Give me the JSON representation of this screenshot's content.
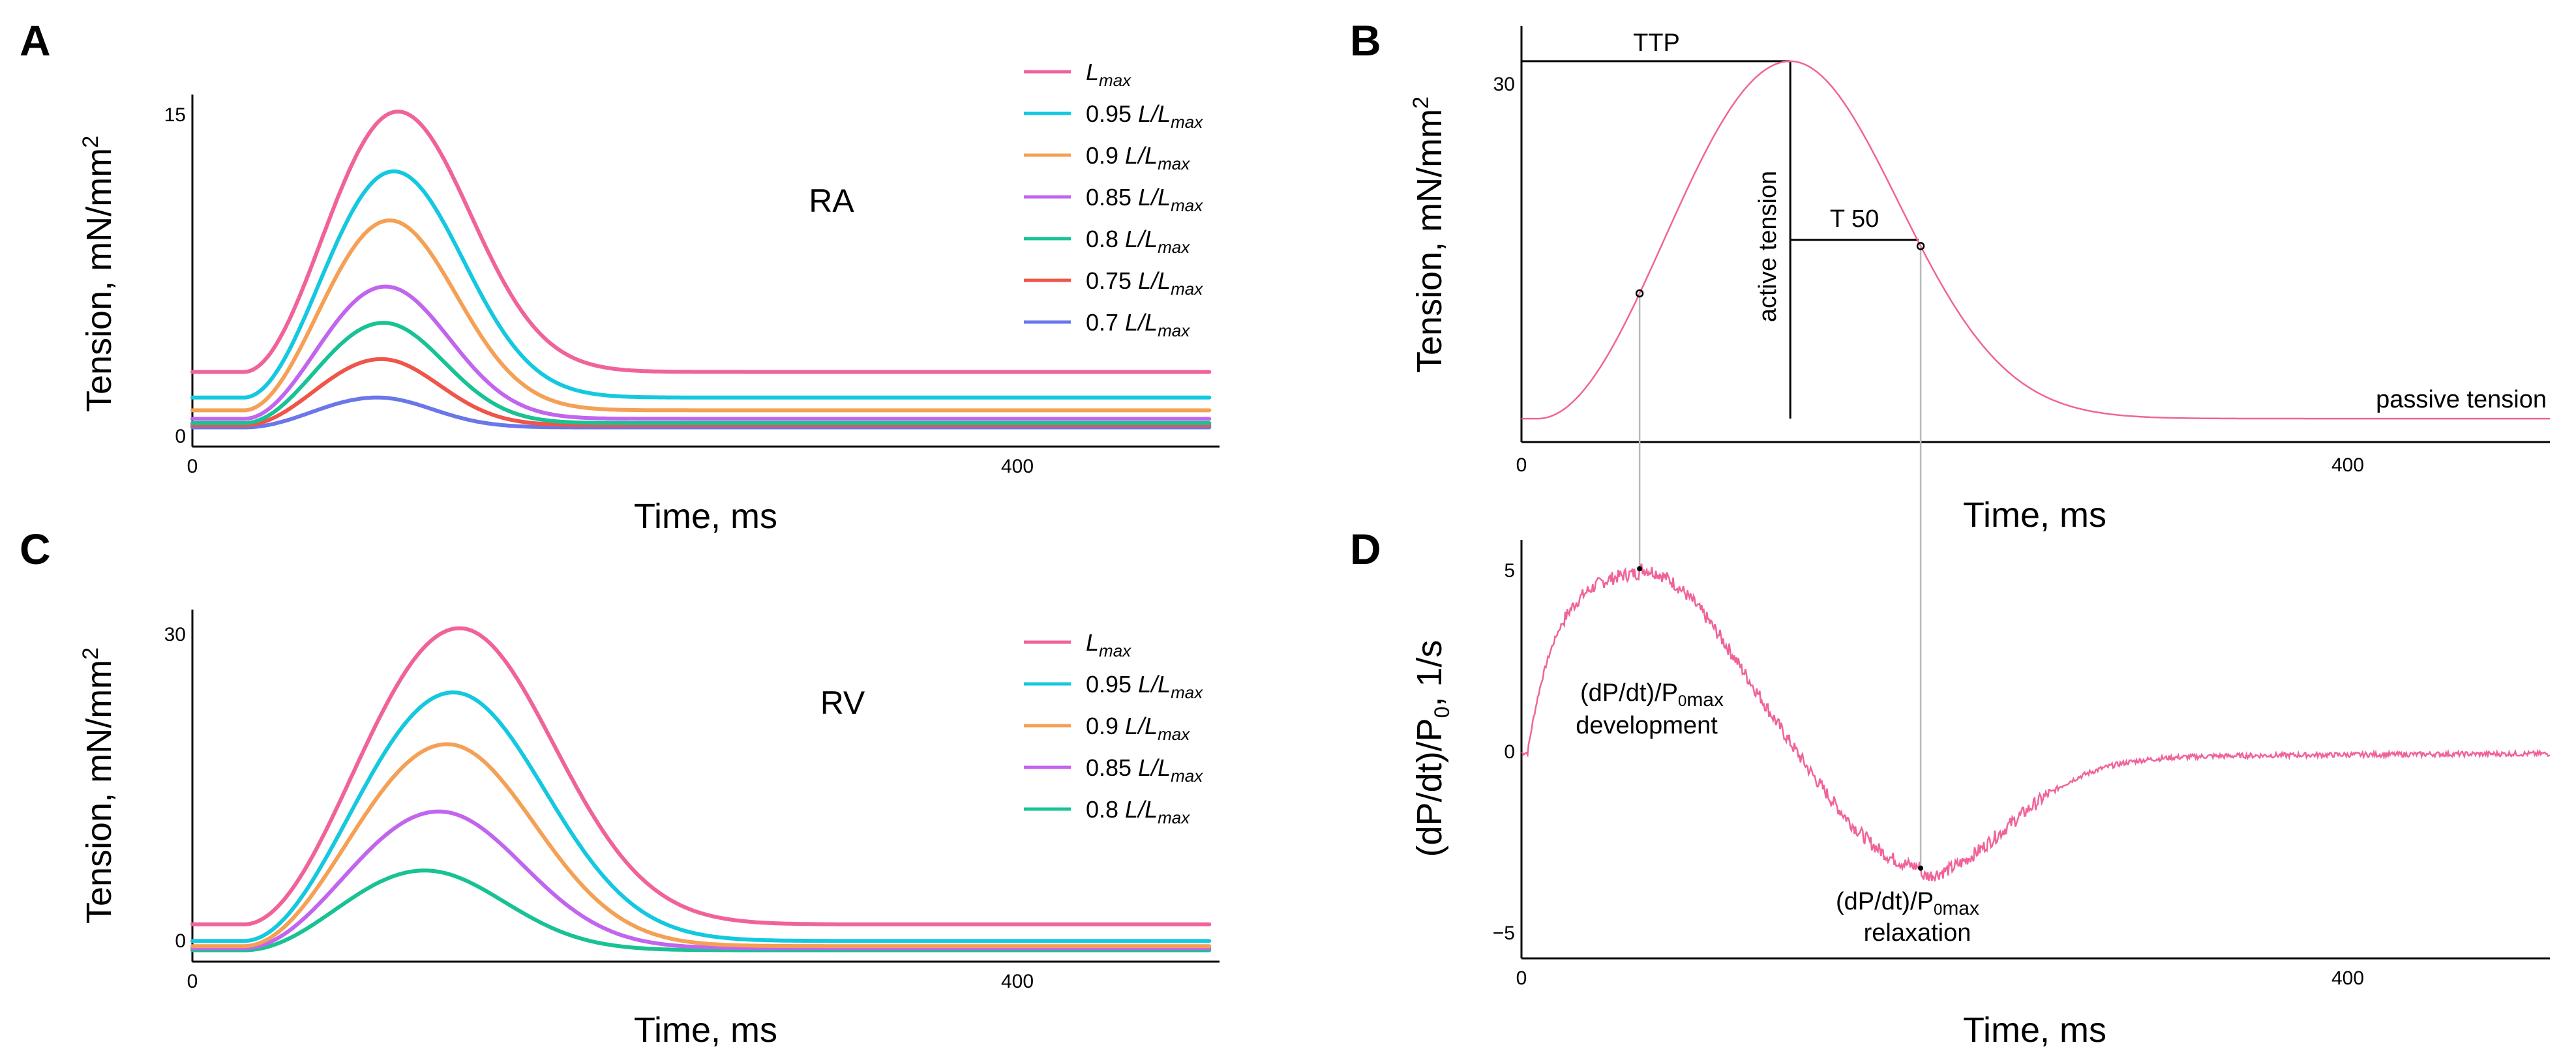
{
  "colors": {
    "Lmax": "#f0639a",
    "0.95": "#14c8e0",
    "0.9": "#f4a055",
    "0.85": "#c265ee",
    "0.8": "#18c294",
    "0.75": "#ef5548",
    "0.7": "#6a76ea",
    "guide": "#b8b8b8"
  },
  "chart_data": [
    {
      "panel": "A",
      "type": "line",
      "title": "RA",
      "xlabel": "Time, ms",
      "ylabel": "Tension, mN/mm",
      "ylabel_sup": "2",
      "xlim": [
        0,
        500
      ],
      "ylim": [
        -0.5,
        16
      ],
      "xticks": [
        "0",
        "400"
      ],
      "yticks": [
        "0",
        "15"
      ],
      "legend": "top-right",
      "series": [
        {
          "key": "Lmax",
          "name": "L",
          "sub": "max",
          "prefix": "",
          "baseline": 3.0,
          "peak": 15.2,
          "t_peak": 100,
          "t_rise": 62,
          "t_decay": 50
        },
        {
          "key": "0.95",
          "name": "0.95 L/L",
          "sub": "max",
          "prefix": "0.95 ",
          "baseline": 1.8,
          "peak": 12.4,
          "t_peak": 98,
          "t_rise": 62,
          "t_decay": 48
        },
        {
          "key": "0.9",
          "name": "0.9 L/L",
          "sub": "max",
          "prefix": "0.9 ",
          "baseline": 1.2,
          "peak": 10.1,
          "t_peak": 96,
          "t_rise": 62,
          "t_decay": 46
        },
        {
          "key": "0.85",
          "name": "0.85 L/L",
          "sub": "max",
          "prefix": "0.85 ",
          "baseline": 0.8,
          "peak": 7.0,
          "t_peak": 94,
          "t_rise": 62,
          "t_decay": 44
        },
        {
          "key": "0.8",
          "name": "0.8 L/L",
          "sub": "max",
          "prefix": "0.8 ",
          "baseline": 0.6,
          "peak": 5.3,
          "t_peak": 93,
          "t_rise": 62,
          "t_decay": 42
        },
        {
          "key": "0.75",
          "name": "0.75 L/L",
          "sub": "max",
          "prefix": "0.75 ",
          "baseline": 0.5,
          "peak": 3.6,
          "t_peak": 92,
          "t_rise": 62,
          "t_decay": 40
        },
        {
          "key": "0.7",
          "name": "0.7 L/L",
          "sub": "max",
          "prefix": "0.7 ",
          "baseline": 0.4,
          "peak": 1.8,
          "t_peak": 90,
          "t_rise": 60,
          "t_decay": 38
        }
      ]
    },
    {
      "panel": "C",
      "type": "line",
      "title": "RV",
      "xlabel": "Time, ms",
      "ylabel": "Tension, mN/mm",
      "ylabel_sup": "2",
      "xlim": [
        0,
        500
      ],
      "ylim": [
        -1,
        33
      ],
      "xticks": [
        "0",
        "400"
      ],
      "yticks": [
        "0",
        "30"
      ],
      "legend": "top-right",
      "series": [
        {
          "key": "Lmax",
          "name": "L",
          "sub": "max",
          "prefix": "",
          "baseline": 2.6,
          "peak": 31.2,
          "t_peak": 130,
          "t_rise": 85,
          "t_decay": 65
        },
        {
          "key": "0.95",
          "name": "0.95 L/L",
          "sub": "max",
          "prefix": "0.95 ",
          "baseline": 1.0,
          "peak": 25.0,
          "t_peak": 127,
          "t_rise": 85,
          "t_decay": 63
        },
        {
          "key": "0.9",
          "name": "0.9 L/L",
          "sub": "max",
          "prefix": "0.9 ",
          "baseline": 0.5,
          "peak": 20.0,
          "t_peak": 124,
          "t_rise": 85,
          "t_decay": 60
        },
        {
          "key": "0.85",
          "name": "0.85 L/L",
          "sub": "max",
          "prefix": "0.85 ",
          "baseline": 0.3,
          "peak": 13.5,
          "t_peak": 120,
          "t_rise": 85,
          "t_decay": 58
        },
        {
          "key": "0.8",
          "name": "0.8 L/L",
          "sub": "max",
          "prefix": "0.8 ",
          "baseline": 0.1,
          "peak": 7.8,
          "t_peak": 113,
          "t_rise": 85,
          "t_decay": 55
        }
      ]
    },
    {
      "panel": "B",
      "type": "line",
      "xlabel": "Time, ms",
      "ylabel": "Tension, mN/mm",
      "ylabel_sup": "2",
      "xlim": [
        0,
        505
      ],
      "ylim": [
        -2,
        33.5
      ],
      "xticks": [
        "0",
        "400"
      ],
      "yticks": [
        "30"
      ],
      "series": [
        {
          "key": "Lmax",
          "baseline": 0,
          "peak": 30.5,
          "t_peak": 132,
          "t_rise": 105,
          "t_decay": 75
        }
      ],
      "annotations": {
        "ttp": "TTP",
        "active": "active tension",
        "t50": "T 50",
        "passive": "passive tension",
        "dev_time": 58,
        "rel_time": 196
      }
    },
    {
      "panel": "D",
      "type": "line",
      "xlabel": "Time, ms",
      "ylabel": "(dP/dt)/P",
      "ylabel_sub": "0",
      "ylabel_tail": ", 1/s",
      "xlim": [
        0,
        505
      ],
      "ylim": [
        -5.7,
        5.9
      ],
      "xticks": [
        "0",
        "400"
      ],
      "yticks": [
        "5",
        "0",
        "−5"
      ],
      "series": [
        {
          "key": "Lmax",
          "name": "(dP/dt)/P0",
          "peak_value": 5.1,
          "peak_time": 58,
          "min_value": -3.2,
          "min_time": 196
        }
      ],
      "annotations": {
        "dev_line1": "(dP/dt)/P",
        "dev_sub": "0",
        "dev_subsub": "max",
        "dev_line2": "development",
        "rel_line1": "(dP/dt)/P",
        "rel_sub": "0",
        "rel_subsub": "max",
        "rel_line2": "relaxation"
      }
    }
  ],
  "panel_labels": {
    "A": "A",
    "B": "B",
    "C": "C",
    "D": "D"
  }
}
